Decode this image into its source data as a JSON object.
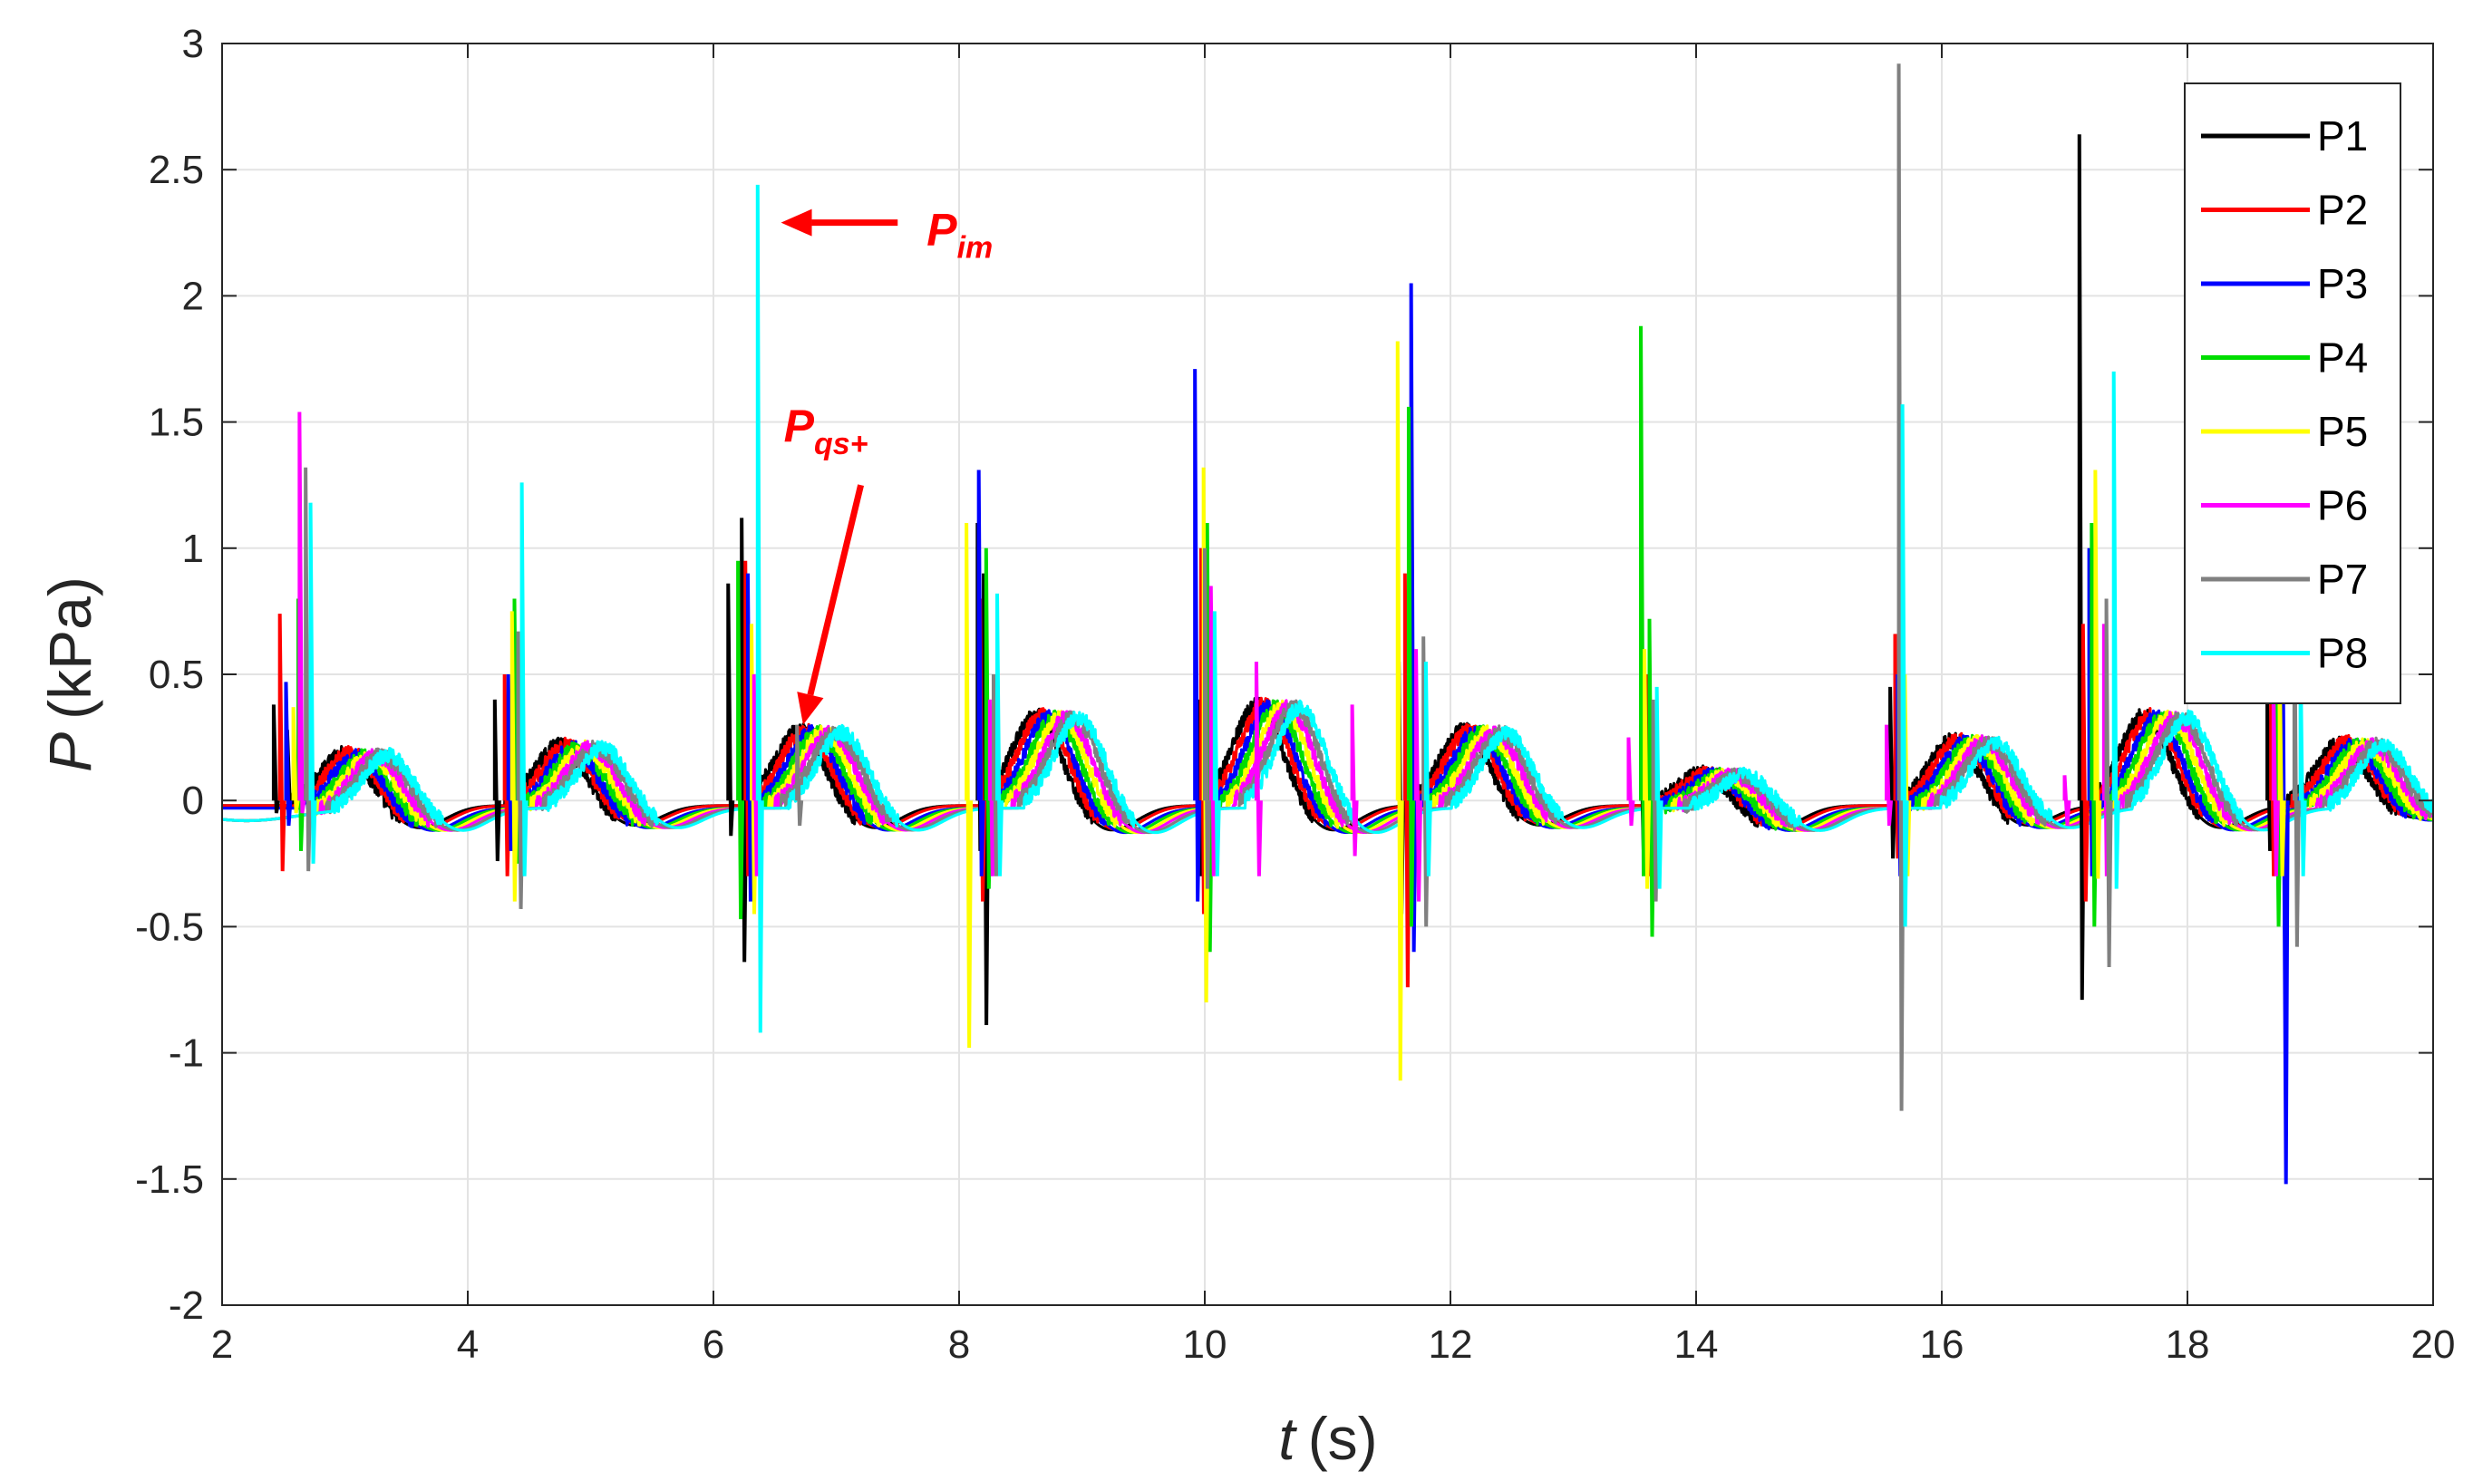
{
  "chart_data": {
    "type": "line",
    "title": "",
    "xlabel": {
      "var": "t",
      "unit": "(s)"
    },
    "ylabel": {
      "var": "P",
      "unit": "(kPa)"
    },
    "xlim": [
      2,
      20
    ],
    "ylim": [
      -2,
      3
    ],
    "xticks": [
      2,
      4,
      6,
      8,
      10,
      12,
      14,
      16,
      18,
      20
    ],
    "xtick_labels": [
      "2",
      "4",
      "6",
      "8",
      "10",
      "12",
      "14",
      "16",
      "18",
      "20"
    ],
    "yticks": [
      -2,
      -1.5,
      -1,
      -0.5,
      0,
      0.5,
      1,
      1.5,
      2,
      2.5,
      3
    ],
    "ytick_labels": [
      "-2",
      "-1.5",
      "-1",
      "-0.5",
      "0",
      "0.5",
      "1",
      "1.5",
      "2",
      "2.5",
      "3"
    ],
    "grid": true,
    "legend_position": "top-right",
    "series": [
      {
        "name": "P1",
        "color": "#000000",
        "lag": 0.0,
        "spikes": [
          [
            2.42,
            0.38,
            -0.05
          ],
          [
            2.53,
            0.28,
            -0.02
          ],
          [
            4.22,
            0.4,
            -0.24
          ],
          [
            6.12,
            0.86,
            -0.14
          ],
          [
            6.23,
            1.12,
            -0.64
          ],
          [
            8.15,
            1.1,
            -0.2
          ],
          [
            8.2,
            0.9,
            -0.89
          ],
          [
            9.95,
            0.4,
            -0.3
          ],
          [
            11.58,
            0.55,
            -0.45
          ],
          [
            13.55,
            0.3,
            -0.2
          ],
          [
            15.58,
            0.45,
            -0.23
          ],
          [
            17.12,
            2.64,
            -0.79
          ],
          [
            18.65,
            0.4,
            -0.2
          ]
        ]
      },
      {
        "name": "P2",
        "color": "#ff0000",
        "lag": 0.05,
        "spikes": [
          [
            2.47,
            0.74,
            -0.28
          ],
          [
            4.3,
            0.5,
            -0.3
          ],
          [
            6.26,
            0.95,
            -0.3
          ],
          [
            8.17,
            0.8,
            -0.4
          ],
          [
            9.97,
            1.0,
            -0.45
          ],
          [
            11.63,
            0.9,
            -0.74
          ],
          [
            13.6,
            0.5,
            -0.3
          ],
          [
            15.62,
            0.66,
            -0.23
          ],
          [
            17.15,
            0.7,
            -0.4
          ],
          [
            18.68,
            0.5,
            -0.3
          ]
        ]
      },
      {
        "name": "P3",
        "color": "#0000ff",
        "lag": 0.1,
        "spikes": [
          [
            2.52,
            0.47,
            -0.1
          ],
          [
            4.33,
            0.5,
            -0.2
          ],
          [
            6.28,
            0.9,
            -0.4
          ],
          [
            8.16,
            1.31,
            -0.3
          ],
          [
            9.92,
            1.71,
            -0.4
          ],
          [
            11.68,
            2.05,
            -0.6
          ],
          [
            13.62,
            0.5,
            -0.3
          ],
          [
            15.64,
            0.5,
            -0.3
          ],
          [
            17.2,
            1.0,
            -0.3
          ],
          [
            18.78,
            0.4,
            -1.52
          ]
        ]
      },
      {
        "name": "P4",
        "color": "#00dd00",
        "lag": 0.15,
        "spikes": [
          [
            2.62,
            0.8,
            -0.2
          ],
          [
            4.38,
            0.8,
            -0.25
          ],
          [
            6.2,
            0.95,
            -0.47
          ],
          [
            8.22,
            1.0,
            -0.35
          ],
          [
            10.02,
            1.1,
            -0.6
          ],
          [
            11.66,
            1.56,
            -0.5
          ],
          [
            13.55,
            1.88,
            -0.3
          ],
          [
            13.62,
            0.72,
            -0.54
          ],
          [
            15.66,
            0.6,
            -0.35
          ],
          [
            17.22,
            1.1,
            -0.5
          ],
          [
            18.72,
            0.4,
            -0.5
          ]
        ]
      },
      {
        "name": "P5",
        "color": "#ffff00",
        "lag": 0.2,
        "spikes": [
          [
            2.58,
            0.37,
            -0.05
          ],
          [
            4.36,
            0.75,
            -0.4
          ],
          [
            6.31,
            0.7,
            -0.45
          ],
          [
            8.06,
            1.1,
            -0.98
          ],
          [
            9.99,
            1.32,
            -0.8
          ],
          [
            11.57,
            1.82,
            -1.11
          ],
          [
            13.58,
            0.6,
            -0.35
          ],
          [
            15.7,
            0.5,
            -0.3
          ],
          [
            17.25,
            1.31,
            -0.31
          ],
          [
            18.75,
            0.6,
            -0.3
          ]
        ]
      },
      {
        "name": "P6",
        "color": "#ff00ff",
        "lag": 0.25,
        "spikes": [
          [
            2.63,
            1.54,
            -0.05
          ],
          [
            4.42,
            0.45,
            -0.3
          ],
          [
            6.33,
            0.5,
            -0.3
          ],
          [
            8.25,
            0.4,
            -0.3
          ],
          [
            10.05,
            0.85,
            -0.3
          ],
          [
            10.42,
            0.55,
            -0.3
          ],
          [
            11.2,
            0.38,
            -0.22
          ],
          [
            11.72,
            0.6,
            -0.4
          ],
          [
            13.45,
            0.25,
            -0.1
          ],
          [
            15.55,
            0.3,
            -0.1
          ],
          [
            17.0,
            0.1,
            -0.1
          ],
          [
            17.32,
            0.7,
            -0.3
          ],
          [
            18.7,
            0.5,
            -0.3
          ]
        ]
      },
      {
        "name": "P7",
        "color": "#808080",
        "lag": 0.3,
        "spikes": [
          [
            2.68,
            1.32,
            -0.28
          ],
          [
            4.41,
            0.67,
            -0.43
          ],
          [
            6.68,
            0.3,
            -0.1
          ],
          [
            8.28,
            0.5,
            -0.3
          ],
          [
            10.0,
            1.0,
            -0.35
          ],
          [
            11.78,
            0.65,
            -0.5
          ],
          [
            13.65,
            0.4,
            -0.4
          ],
          [
            15.65,
            2.92,
            -1.23
          ],
          [
            17.34,
            0.8,
            -0.66
          ],
          [
            18.87,
            0.9,
            -0.58
          ]
        ]
      },
      {
        "name": "P8",
        "color": "#00ffff",
        "lag": 0.35,
        "spikes": [
          [
            2.72,
            1.18,
            -0.25
          ],
          [
            4.44,
            1.26,
            -0.3
          ],
          [
            6.36,
            2.44,
            -0.92
          ],
          [
            8.31,
            0.82,
            -0.3
          ],
          [
            10.08,
            0.75,
            -0.3
          ],
          [
            11.8,
            0.55,
            -0.3
          ],
          [
            13.68,
            0.45,
            -0.35
          ],
          [
            15.68,
            1.57,
            -0.5
          ],
          [
            17.4,
            1.7,
            -0.35
          ],
          [
            18.92,
            0.6,
            -0.3
          ]
        ]
      }
    ],
    "cycles": [
      {
        "t": 2.55,
        "amp": 0.21,
        "dip": 0.09
      },
      {
        "t": 4.3,
        "amp": 0.24,
        "dip": 0.08
      },
      {
        "t": 6.25,
        "amp": 0.3,
        "dip": 0.09
      },
      {
        "t": 8.18,
        "amp": 0.36,
        "dip": 0.1
      },
      {
        "t": 9.98,
        "amp": 0.4,
        "dip": 0.1
      },
      {
        "t": 11.66,
        "amp": 0.3,
        "dip": 0.08
      },
      {
        "t": 13.6,
        "amp": 0.13,
        "dip": 0.09
      },
      {
        "t": 15.64,
        "amp": 0.26,
        "dip": 0.08
      },
      {
        "t": 17.2,
        "amp": 0.36,
        "dip": 0.09
      },
      {
        "t": 18.8,
        "amp": 0.25,
        "dip": 0.05
      }
    ],
    "annotations": [
      {
        "id": "pim",
        "base": "P",
        "sub": "im",
        "color": "#ff0000",
        "from": [
          7.5,
          2.29
        ],
        "to": [
          6.55,
          2.29
        ]
      },
      {
        "id": "pqs",
        "base": "P",
        "sub": "qs+",
        "color": "#ff0000",
        "from": [
          7.2,
          1.25
        ],
        "to": [
          6.73,
          0.3
        ]
      }
    ]
  }
}
